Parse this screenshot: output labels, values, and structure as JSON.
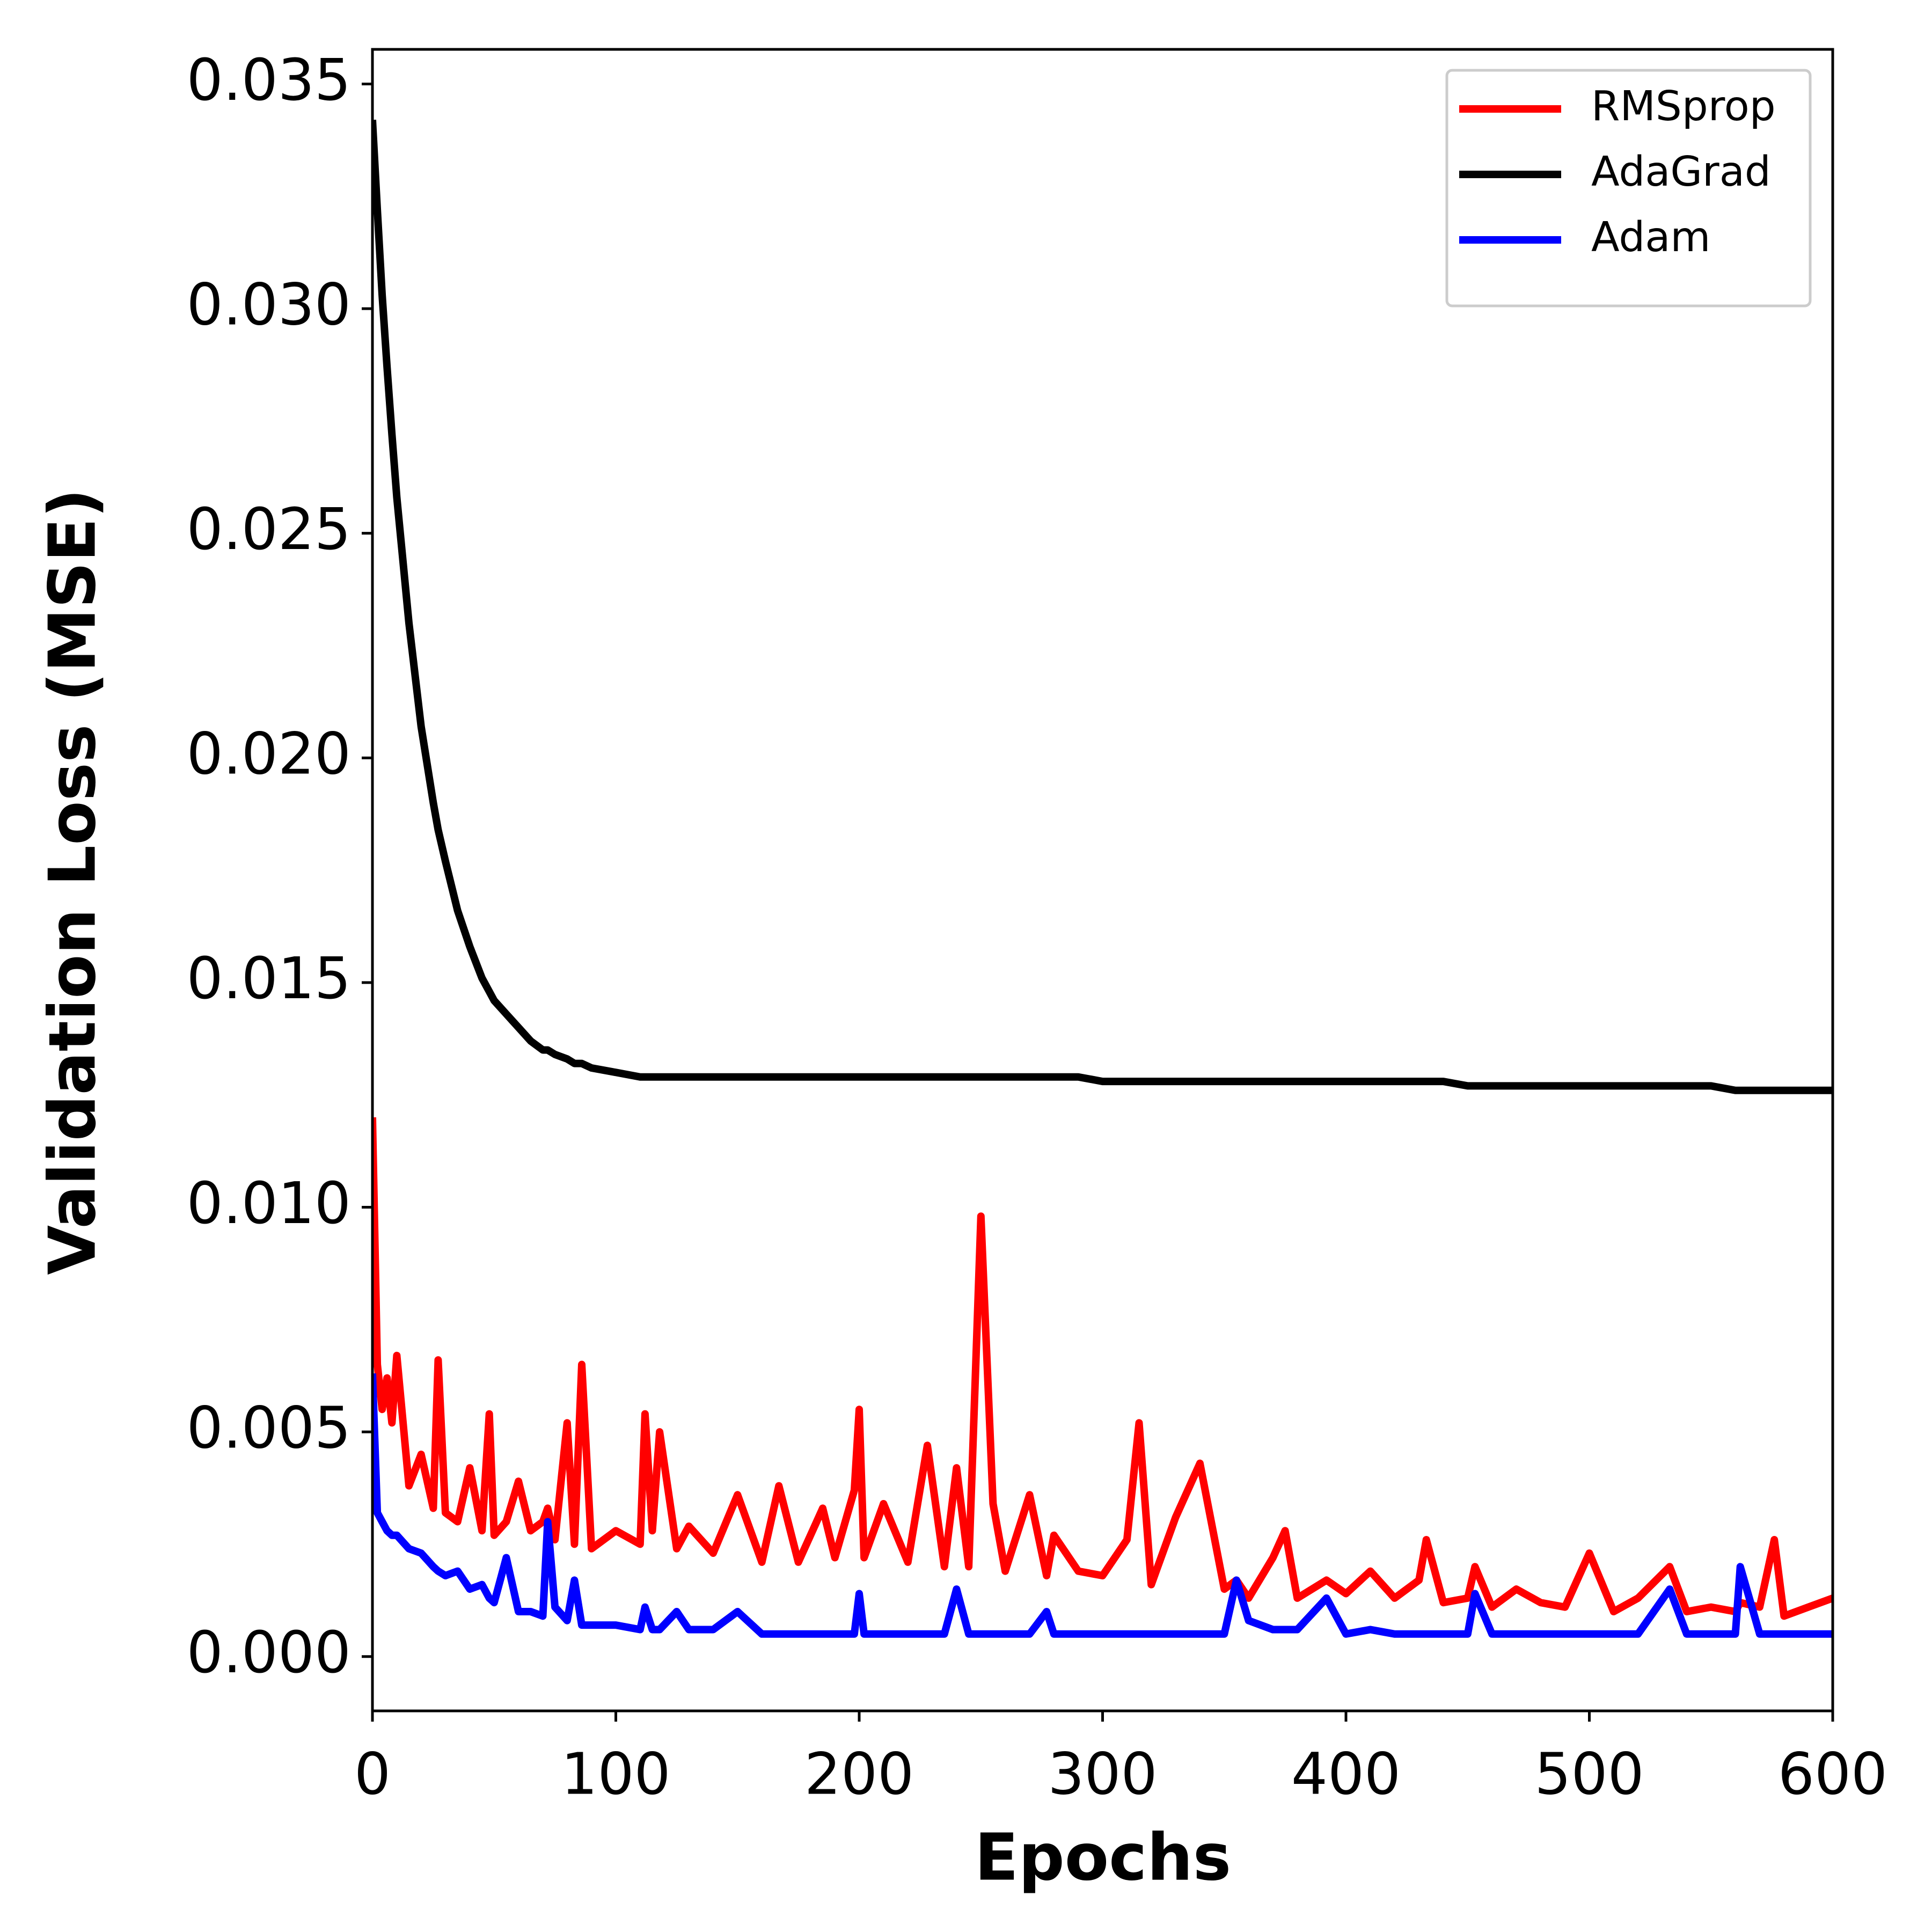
{
  "chart_data": {
    "type": "line",
    "xlabel": "Epochs",
    "ylabel": "Validation Loss (MSE)",
    "xlim": [
      0,
      600
    ],
    "ylim": [
      -0.00121,
      0.03577
    ],
    "xticks": [
      0,
      100,
      200,
      300,
      400,
      500,
      600
    ],
    "yticks": [
      {
        "value": 0,
        "label": "0.000"
      },
      {
        "value": 0.005,
        "label": "0.005"
      },
      {
        "value": 0.01,
        "label": "0.010"
      },
      {
        "value": 0.015,
        "label": "0.015"
      },
      {
        "value": 0.02,
        "label": "0.020"
      },
      {
        "value": 0.025,
        "label": "0.025"
      },
      {
        "value": 0.03,
        "label": "0.030"
      },
      {
        "value": 0.035,
        "label": "0.035"
      }
    ],
    "legend": "upper right",
    "x": [
      0,
      2,
      4,
      6,
      8,
      10,
      15,
      20,
      25,
      27,
      30,
      35,
      40,
      45,
      48,
      50,
      55,
      60,
      65,
      70,
      72,
      75,
      80,
      83,
      86,
      90,
      100,
      110,
      112,
      115,
      118,
      125,
      130,
      140,
      150,
      160,
      167,
      175,
      185,
      190,
      198,
      200,
      202,
      210,
      220,
      228,
      235,
      240,
      245,
      250,
      255,
      260,
      270,
      277,
      280,
      290,
      300,
      310,
      315,
      320,
      330,
      340,
      350,
      355,
      360,
      370,
      375,
      380,
      392,
      400,
      410,
      420,
      430,
      433,
      440,
      450,
      453,
      460,
      470,
      480,
      490,
      500,
      510,
      520,
      533,
      540,
      550,
      560,
      562,
      570,
      576,
      580,
      590,
      600
    ],
    "series": [
      {
        "name": "RMSprop",
        "color": "#ff0000",
        "values": [
          0.012,
          0.0065,
          0.0055,
          0.0062,
          0.0052,
          0.0067,
          0.0038,
          0.0045,
          0.0033,
          0.0066,
          0.0032,
          0.003,
          0.0042,
          0.0028,
          0.0054,
          0.0027,
          0.003,
          0.0039,
          0.0028,
          0.003,
          0.0033,
          0.0026,
          0.0052,
          0.0025,
          0.0065,
          0.0024,
          0.0028,
          0.0025,
          0.0054,
          0.0028,
          0.005,
          0.0024,
          0.0029,
          0.0023,
          0.0036,
          0.0021,
          0.0038,
          0.0021,
          0.0033,
          0.0022,
          0.0037,
          0.0055,
          0.0022,
          0.0034,
          0.0021,
          0.0047,
          0.002,
          0.0042,
          0.002,
          0.0098,
          0.0034,
          0.0019,
          0.0036,
          0.0018,
          0.0027,
          0.0019,
          0.0018,
          0.0026,
          0.0052,
          0.0016,
          0.0031,
          0.0043,
          0.0015,
          0.0017,
          0.0013,
          0.0022,
          0.0028,
          0.0013,
          0.0017,
          0.0014,
          0.0019,
          0.0013,
          0.0017,
          0.0026,
          0.0012,
          0.0013,
          0.002,
          0.0011,
          0.0015,
          0.0012,
          0.0011,
          0.0023,
          0.001,
          0.0013,
          0.002,
          0.001,
          0.0011,
          0.001,
          0.0012,
          0.0011,
          0.0026,
          0.0009,
          0.0011,
          0.0013
        ]
      },
      {
        "name": "AdaGrad",
        "color": "#000000",
        "values": [
          0.0342,
          0.0322,
          0.0303,
          0.0287,
          0.0272,
          0.0258,
          0.023,
          0.0207,
          0.019,
          0.0184,
          0.0177,
          0.0166,
          0.0158,
          0.0151,
          0.0148,
          0.0146,
          0.0143,
          0.014,
          0.0137,
          0.0135,
          0.0135,
          0.0134,
          0.0133,
          0.0132,
          0.0132,
          0.0131,
          0.013,
          0.0129,
          0.0129,
          0.0129,
          0.0129,
          0.0129,
          0.0129,
          0.0129,
          0.0129,
          0.0129,
          0.0129,
          0.0129,
          0.0129,
          0.0129,
          0.0129,
          0.0129,
          0.0129,
          0.0129,
          0.0129,
          0.0129,
          0.0129,
          0.0129,
          0.0129,
          0.0129,
          0.0129,
          0.0129,
          0.0129,
          0.0129,
          0.0129,
          0.0129,
          0.0128,
          0.0128,
          0.0128,
          0.0128,
          0.0128,
          0.0128,
          0.0128,
          0.0128,
          0.0128,
          0.0128,
          0.0128,
          0.0128,
          0.0128,
          0.0128,
          0.0128,
          0.0128,
          0.0128,
          0.0128,
          0.0128,
          0.0127,
          0.0127,
          0.0127,
          0.0127,
          0.0127,
          0.0127,
          0.0127,
          0.0127,
          0.0127,
          0.0127,
          0.0127,
          0.0127,
          0.0126,
          0.0126,
          0.0126,
          0.0126,
          0.0126,
          0.0126,
          0.0126
        ]
      },
      {
        "name": "Adam",
        "color": "#0000ff",
        "values": [
          0.0063,
          0.0032,
          0.003,
          0.0028,
          0.0027,
          0.0027,
          0.0024,
          0.0023,
          0.002,
          0.0019,
          0.0018,
          0.0019,
          0.0015,
          0.0016,
          0.0013,
          0.0012,
          0.0022,
          0.001,
          0.001,
          0.0009,
          0.003,
          0.0011,
          0.0008,
          0.0017,
          0.0007,
          0.0007,
          0.0007,
          0.0006,
          0.0011,
          0.0006,
          0.0006,
          0.001,
          0.0006,
          0.0006,
          0.001,
          0.0005,
          0.0005,
          0.0005,
          0.0005,
          0.0005,
          0.0005,
          0.0014,
          0.0005,
          0.0005,
          0.0005,
          0.0005,
          0.0005,
          0.0015,
          0.0005,
          0.0005,
          0.0005,
          0.0005,
          0.0005,
          0.001,
          0.0005,
          0.0005,
          0.0005,
          0.0005,
          0.0005,
          0.0005,
          0.0005,
          0.0005,
          0.0005,
          0.0017,
          0.0008,
          0.0006,
          0.0006,
          0.0006,
          0.0013,
          0.0005,
          0.0006,
          0.0005,
          0.0005,
          0.0005,
          0.0005,
          0.0005,
          0.0014,
          0.0005,
          0.0005,
          0.0005,
          0.0005,
          0.0005,
          0.0005,
          0.0005,
          0.0015,
          0.0005,
          0.0005,
          0.0005,
          0.002,
          0.0005,
          0.0005,
          0.0005,
          0.0005,
          0.0005
        ]
      }
    ]
  }
}
